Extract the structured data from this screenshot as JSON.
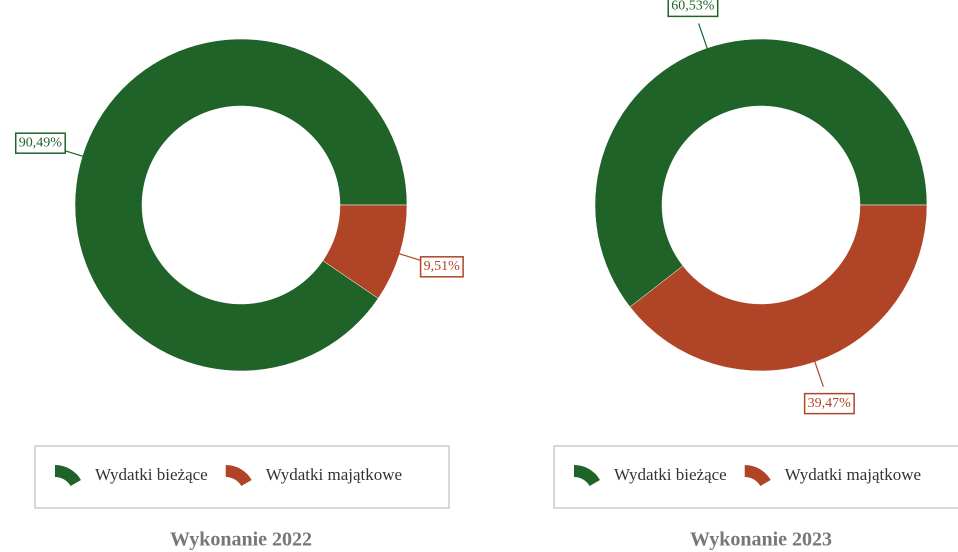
{
  "chart_data": [
    {
      "type": "pie",
      "title": "Wykonanie 2022",
      "donut": true,
      "categories": [
        "Wydatki bieżące",
        "Wydatki majątkowe"
      ],
      "values": [
        90.49,
        9.51
      ],
      "value_labels": [
        "90,49%",
        "9,51%"
      ],
      "colors": [
        "#1f6329",
        "#b04426"
      ]
    },
    {
      "type": "pie",
      "title": "Wykonanie 2023",
      "donut": true,
      "categories": [
        "Wydatki bieżące",
        "Wydatki majątkowe"
      ],
      "values": [
        60.53,
        39.47
      ],
      "value_labels": [
        "60,53%",
        "39,47%"
      ],
      "colors": [
        "#1f6329",
        "#b04426"
      ]
    }
  ]
}
